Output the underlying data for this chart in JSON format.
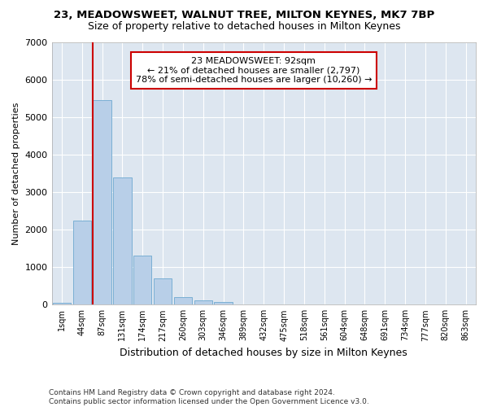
{
  "title_line1": "23, MEADOWSWEET, WALNUT TREE, MILTON KEYNES, MK7 7BP",
  "title_line2": "Size of property relative to detached houses in Milton Keynes",
  "xlabel": "Distribution of detached houses by size in Milton Keynes",
  "ylabel": "Number of detached properties",
  "footnote": "Contains HM Land Registry data © Crown copyright and database right 2024.\nContains public sector information licensed under the Open Government Licence v3.0.",
  "bar_labels": [
    "1sqm",
    "44sqm",
    "87sqm",
    "131sqm",
    "174sqm",
    "217sqm",
    "260sqm",
    "303sqm",
    "346sqm",
    "389sqm",
    "432sqm",
    "475sqm",
    "518sqm",
    "561sqm",
    "604sqm",
    "648sqm",
    "691sqm",
    "734sqm",
    "777sqm",
    "820sqm",
    "863sqm"
  ],
  "bar_values": [
    50,
    2250,
    5450,
    3400,
    1300,
    700,
    200,
    110,
    65,
    15,
    5,
    2,
    1,
    0,
    0,
    0,
    0,
    0,
    0,
    0,
    0
  ],
  "bar_color": "#b8cfe8",
  "bar_edge_color": "#7aafd4",
  "background_color": "#dde6f0",
  "ylim": [
    0,
    7000
  ],
  "yticks": [
    0,
    1000,
    2000,
    3000,
    4000,
    5000,
    6000,
    7000
  ],
  "vline_x_idx": 2,
  "vline_color": "#cc0000",
  "annotation_line1": "23 MEADOWSWEET: 92sqm",
  "annotation_line2": "← 21% of detached houses are smaller (2,797)",
  "annotation_line3": "78% of semi-detached houses are larger (10,260) →",
  "annotation_box_color": "#ffffff",
  "annotation_box_edge": "#cc0000",
  "title1_fontsize": 9.5,
  "title2_fontsize": 9,
  "footnote_fontsize": 6.5
}
